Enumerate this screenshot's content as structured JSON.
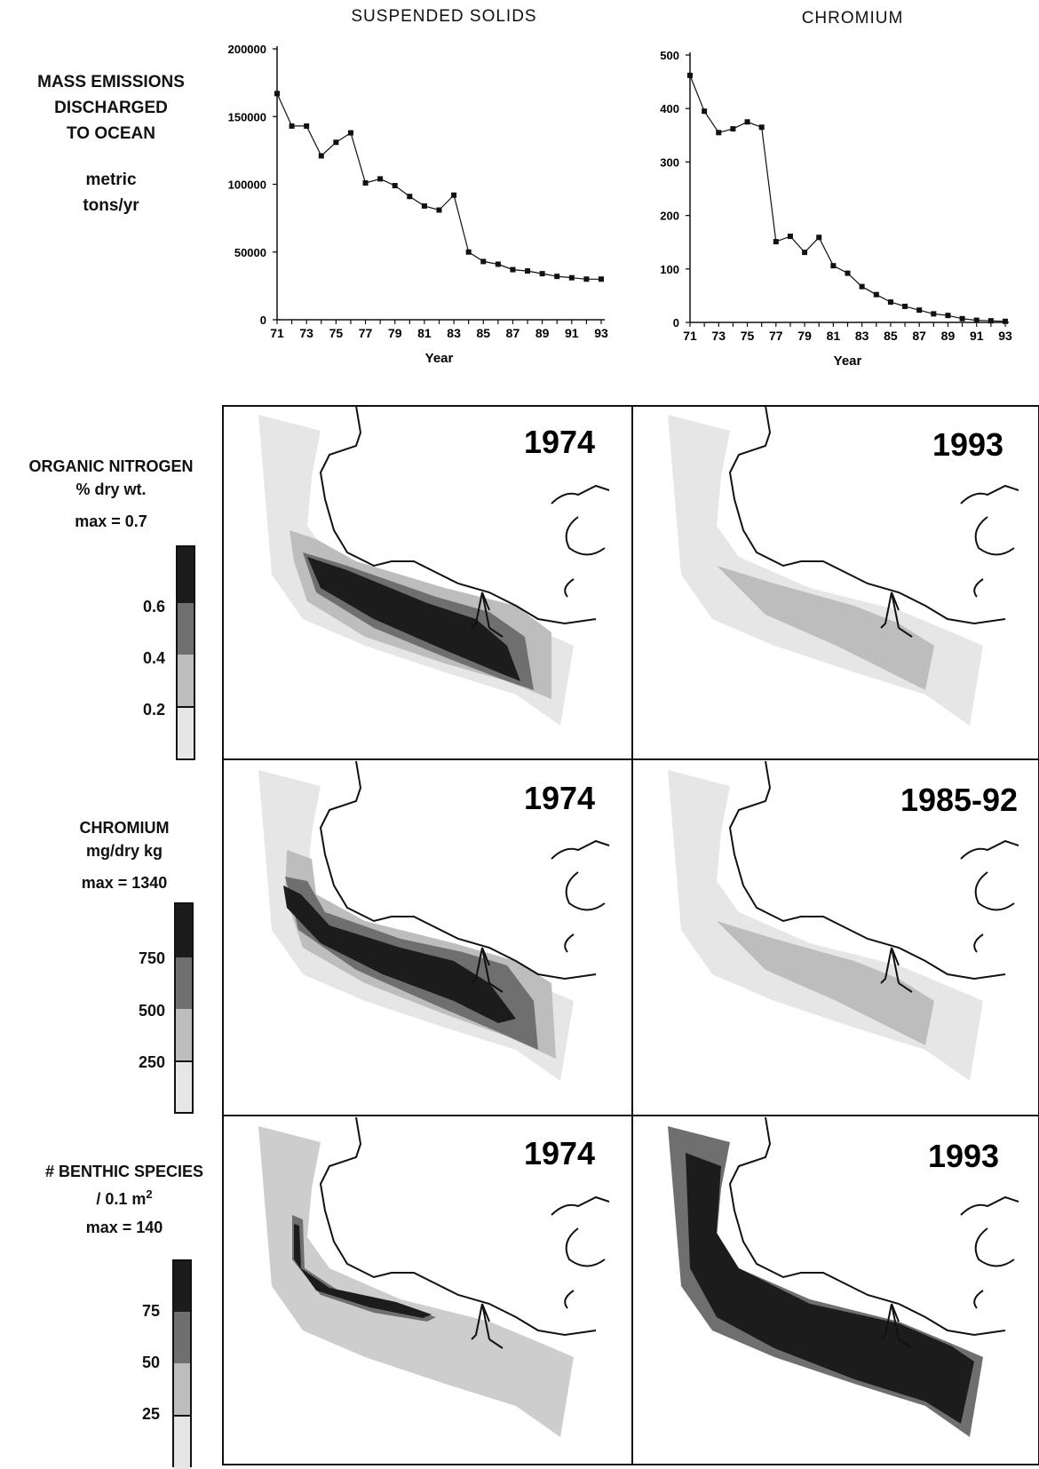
{
  "chart_data": [
    {
      "type": "line",
      "title": "SUSPENDED SOLIDS",
      "xlabel": "Year",
      "ylabel": "",
      "x": [
        71,
        72,
        73,
        74,
        75,
        76,
        77,
        78,
        79,
        80,
        81,
        82,
        83,
        84,
        85,
        86,
        87,
        88,
        89,
        90,
        91,
        92,
        93
      ],
      "values": [
        167000,
        143000,
        143000,
        121000,
        131000,
        138000,
        101000,
        104000,
        99000,
        91000,
        84000,
        81000,
        92000,
        50000,
        43000,
        41000,
        37000,
        36000,
        34000,
        32000,
        31000,
        30000,
        30000
      ],
      "x_ticks": [
        "71",
        "73",
        "75",
        "77",
        "79",
        "81",
        "83",
        "85",
        "87",
        "89",
        "91",
        "93"
      ],
      "y_ticks": [
        "0",
        "50000",
        "100000",
        "150000",
        "200000"
      ],
      "ylim": [
        0,
        200000
      ],
      "xlim": [
        71,
        93
      ],
      "grid": false
    },
    {
      "type": "line",
      "title": "CHROMIUM",
      "xlabel": "Year",
      "ylabel": "",
      "x": [
        71,
        72,
        73,
        74,
        75,
        76,
        77,
        78,
        79,
        80,
        81,
        82,
        83,
        84,
        85,
        86,
        87,
        88,
        89,
        90,
        91,
        92,
        93
      ],
      "values": [
        462,
        395,
        355,
        362,
        375,
        365,
        151,
        161,
        131,
        159,
        106,
        92,
        67,
        52,
        38,
        30,
        23,
        16,
        13,
        7,
        4,
        3,
        2
      ],
      "x_ticks": [
        "71",
        "73",
        "75",
        "77",
        "79",
        "81",
        "83",
        "85",
        "87",
        "89",
        "91",
        "93"
      ],
      "y_ticks": [
        "0",
        "100",
        "200",
        "300",
        "400",
        "500"
      ],
      "ylim": [
        0,
        500
      ],
      "xlim": [
        71,
        93
      ],
      "grid": false
    }
  ],
  "left_label": {
    "line1": "MASS EMISSIONS",
    "line2": "DISCHARGED",
    "line3": "TO OCEAN",
    "line4": "metric",
    "line5": "tons/yr"
  },
  "rows": [
    {
      "label1": "ORGANIC NITROGEN",
      "label2": "% dry wt.",
      "max": "max = 0.7",
      "ticks": [
        "0.6",
        "0.4",
        "0.2"
      ],
      "left_year": "1974",
      "right_year": "1993"
    },
    {
      "label1": "CHROMIUM",
      "label2": "mg/dry kg",
      "max": "max = 1340",
      "ticks": [
        "750",
        "500",
        "250"
      ],
      "left_year": "1974",
      "right_year": "1985-92"
    },
    {
      "label1": "# BENTHIC SPECIES",
      "label2": "/ 0.1 m",
      "label2_sup": "2",
      "max": "max = 140",
      "ticks": [
        "75",
        "50",
        "25"
      ],
      "left_year": "1974",
      "right_year": "1993"
    }
  ],
  "colors": {
    "level1": "#e6e6e6",
    "level2": "#bdbdbd",
    "level3": "#6f6f6f",
    "level4": "#1c1c1c"
  }
}
